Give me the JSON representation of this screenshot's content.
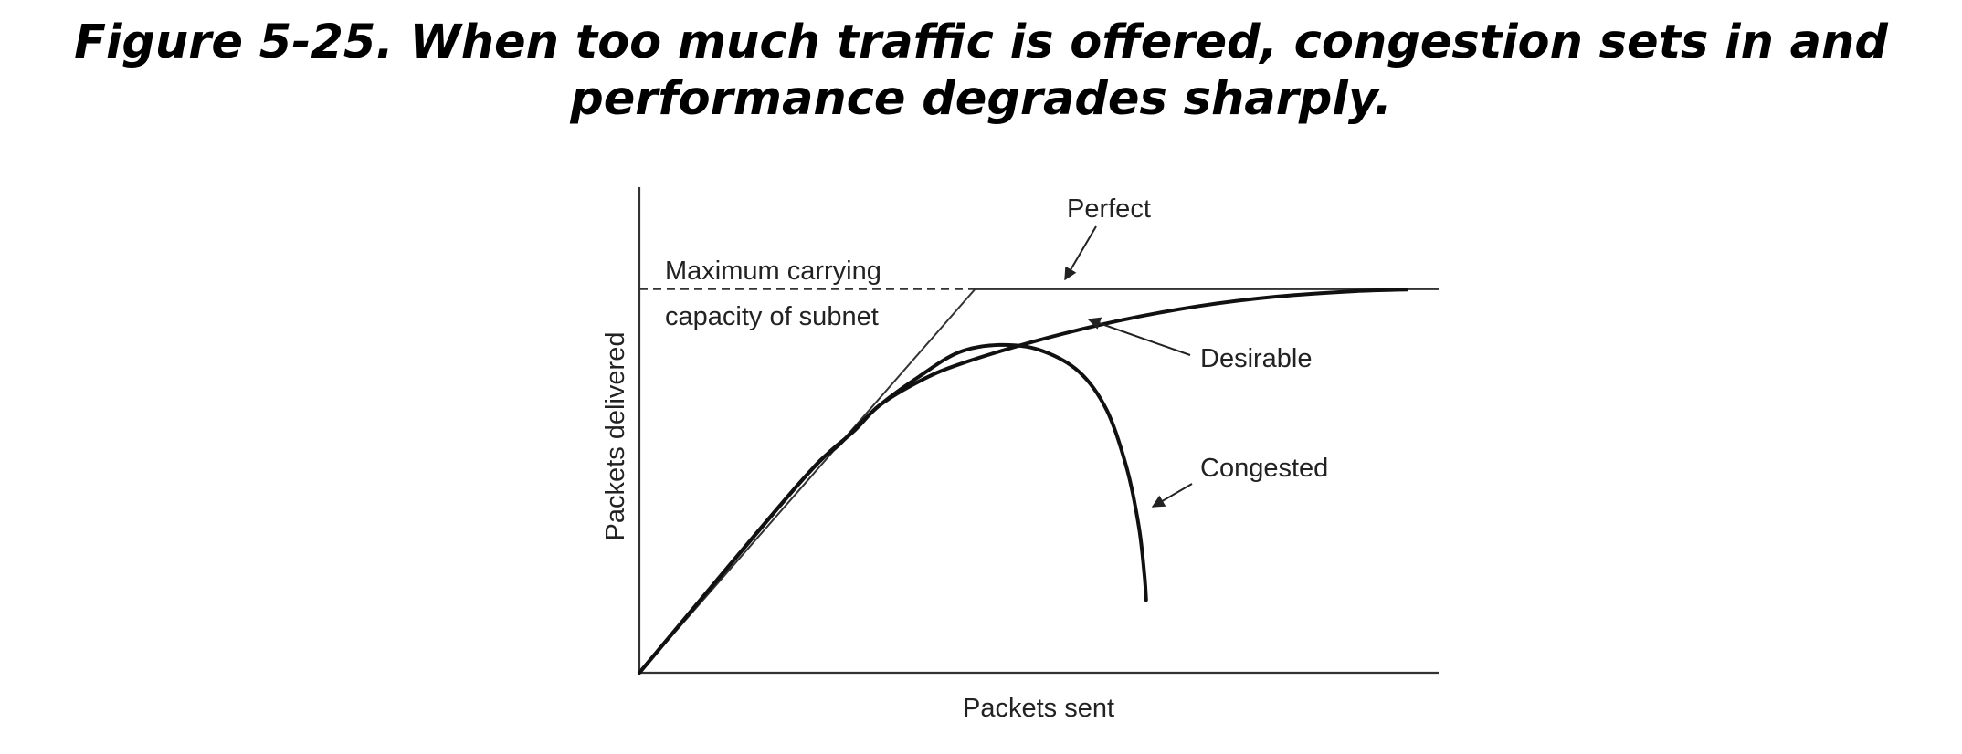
{
  "figure": {
    "caption_line1": "Figure 5-25. When too much traffic is offered, congestion sets in and",
    "caption_line2": "performance degrades sharply."
  },
  "chart_data": {
    "type": "line",
    "xlabel": "Packets sent",
    "ylabel": "Packets delivered",
    "xlim": [
      0,
      100
    ],
    "ylim": [
      0,
      100
    ],
    "capacity": {
      "value": 79,
      "label_line1": "Maximum carrying",
      "label_line2": "capacity of subnet"
    },
    "series": [
      {
        "name": "Perfect",
        "x": [
          0,
          42,
          100
        ],
        "y": [
          0,
          79,
          79
        ]
      },
      {
        "name": "Desirable",
        "x": [
          0,
          20,
          27,
          30,
          35,
          40,
          50,
          60,
          70,
          80,
          90,
          96
        ],
        "y": [
          0,
          39,
          50,
          55,
          60,
          63.5,
          68.5,
          72.5,
          75.5,
          77.5,
          78.6,
          78.9
        ]
      },
      {
        "name": "Congested",
        "x": [
          0,
          20,
          25,
          30,
          35,
          40,
          45,
          50,
          55,
          58.5,
          61,
          62.5,
          63.2,
          63.4
        ],
        "y": [
          0,
          39,
          47,
          55,
          61,
          66,
          67.5,
          66.5,
          62,
          54,
          42,
          30,
          20,
          15
        ]
      }
    ],
    "annotations": [
      "Perfect",
      "Desirable",
      "Congested"
    ],
    "grid": false,
    "legend": "none"
  }
}
